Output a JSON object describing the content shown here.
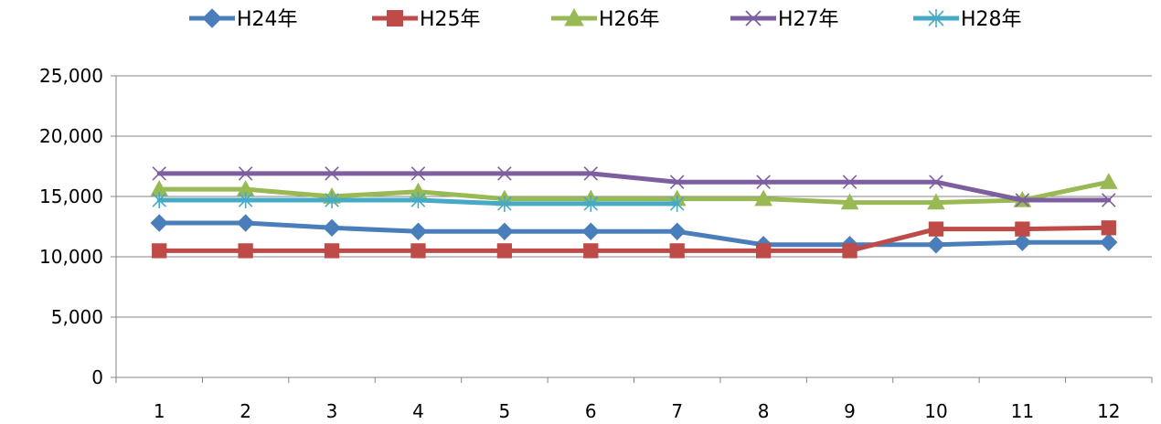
{
  "chart_data": {
    "type": "line",
    "title": "",
    "xlabel": "",
    "ylabel": "",
    "categories": [
      "1",
      "2",
      "3",
      "4",
      "5",
      "6",
      "7",
      "8",
      "9",
      "10",
      "11",
      "12"
    ],
    "ylim": [
      0,
      25000
    ],
    "yticks": [
      0,
      5000,
      10000,
      15000,
      20000,
      25000
    ],
    "ytick_labels": [
      "0",
      "5,000",
      "10,000",
      "15,000",
      "20,000",
      "25,000"
    ],
    "grid": true,
    "legend_position": "top",
    "series": [
      {
        "name": "H24年",
        "color": "#4a7ebb",
        "marker": "diamond",
        "values": [
          12800,
          12800,
          12400,
          12100,
          12100,
          12100,
          12100,
          11000,
          11000,
          11000,
          11200,
          11200
        ]
      },
      {
        "name": "H25年",
        "color": "#be4b48",
        "marker": "square",
        "values": [
          10500,
          10500,
          10500,
          10500,
          10500,
          10500,
          10500,
          10500,
          10500,
          12300,
          12300,
          12400
        ]
      },
      {
        "name": "H26年",
        "color": "#98b954",
        "marker": "triangle",
        "values": [
          15600,
          15600,
          15000,
          15400,
          14800,
          14800,
          14800,
          14800,
          14500,
          14500,
          14700,
          16200
        ]
      },
      {
        "name": "H27年",
        "color": "#7d5fa0",
        "marker": "x",
        "values": [
          16900,
          16900,
          16900,
          16900,
          16900,
          16900,
          16200,
          16200,
          16200,
          16200,
          14700,
          14700
        ]
      },
      {
        "name": "H28年",
        "color": "#46aac5",
        "marker": "asterisk",
        "values": [
          14700,
          14700,
          14700,
          14700,
          14400,
          14400,
          14400,
          null,
          null,
          null,
          null,
          null
        ]
      }
    ]
  }
}
